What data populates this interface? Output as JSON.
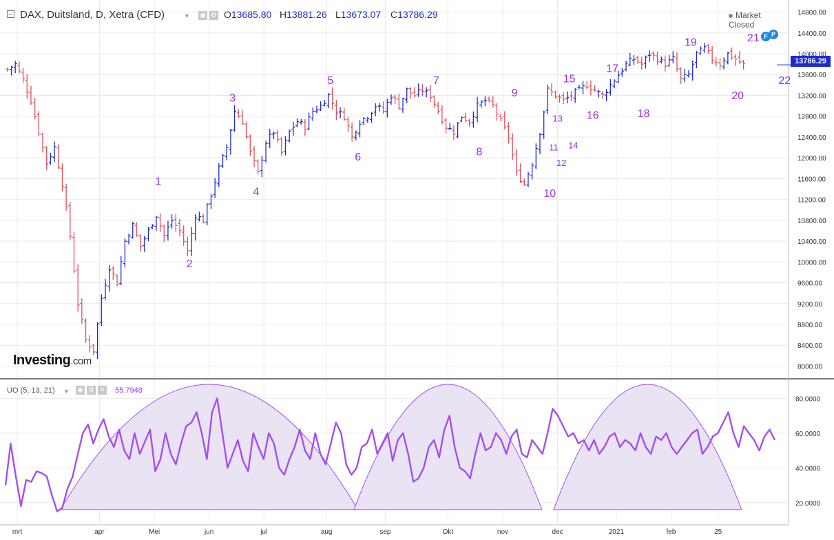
{
  "header": {
    "symbol": "DAX, Duitsland, D, Xetra (CFD)",
    "open_label": "O",
    "open_value": "13685.80",
    "high_label": "H",
    "high_value": "13881.26",
    "low_label": "L",
    "low_value": "13673.07",
    "close_label": "C",
    "close_value": "13786.29",
    "market_status": "Market Closed",
    "caret_icon": "caret-down-icon",
    "settings_icon": "gear-icon",
    "eye_icon": "eye-icon"
  },
  "logo": {
    "text": "Investing",
    "suffix": ".com"
  },
  "indicator": {
    "title": "UO (5, 13, 21)",
    "value": "55.7948",
    "icons": [
      "eye-icon",
      "gear-icon",
      "close-icon"
    ]
  },
  "price_tag": "13786.29",
  "badges": [
    "F",
    "P"
  ],
  "colors": {
    "up_bar": "#1c2bd0",
    "down_bar": "#e0505a",
    "oscillator": "#a64df0",
    "arc_fill": "#e9e3f4",
    "arc_stroke": "#a64df0",
    "wave_label": "#9b30e0",
    "grid": "#e9e9e9"
  },
  "chart_data": [
    {
      "type": "ohlc",
      "title": "DAX, Duitsland, D, Xetra (CFD)",
      "y_axis": {
        "min": 7900,
        "max": 14900,
        "ticks": [
          "14800.00",
          "14400.00",
          "14000.00",
          "13600.00",
          "13200.00",
          "12800.00",
          "12400.00",
          "12000.00",
          "11600.00",
          "11200.00",
          "10800.00",
          "10400.00",
          "10000.00",
          "9600.00",
          "9200.00",
          "8800.00",
          "8400.00",
          "8000.00"
        ]
      },
      "x_axis": {
        "ticks": [
          "mrt",
          "apr",
          "Mei",
          "jun",
          "jul",
          "aug",
          "sep",
          "Okt",
          "nov",
          "dec",
          "2021",
          "feb",
          "25"
        ]
      },
      "grid": true,
      "last_price": 13786.29,
      "close_path": [
        [
          0,
          13700
        ],
        [
          2,
          13800
        ],
        [
          4,
          13500
        ],
        [
          6,
          13100
        ],
        [
          8,
          12500
        ],
        [
          10,
          11900
        ],
        [
          12,
          12200
        ],
        [
          14,
          11500
        ],
        [
          16,
          10500
        ],
        [
          18,
          9200
        ],
        [
          20,
          8500
        ],
        [
          22,
          8300
        ],
        [
          24,
          9300
        ],
        [
          26,
          9900
        ],
        [
          28,
          9600
        ],
        [
          30,
          10400
        ],
        [
          32,
          10700
        ],
        [
          34,
          10300
        ],
        [
          36,
          10600
        ],
        [
          38,
          10900
        ],
        [
          40,
          10500
        ],
        [
          42,
          10800
        ],
        [
          44,
          10600
        ],
        [
          46,
          10200
        ],
        [
          48,
          10900
        ],
        [
          50,
          10800
        ],
        [
          52,
          11300
        ],
        [
          54,
          11800
        ],
        [
          56,
          12200
        ],
        [
          58,
          12900
        ],
        [
          60,
          12700
        ],
        [
          62,
          12100
        ],
        [
          64,
          11700
        ],
        [
          66,
          12300
        ],
        [
          68,
          12500
        ],
        [
          70,
          12100
        ],
        [
          72,
          12500
        ],
        [
          74,
          12700
        ],
        [
          76,
          12600
        ],
        [
          78,
          12900
        ],
        [
          80,
          13000
        ],
        [
          82,
          13200
        ],
        [
          84,
          12900
        ],
        [
          86,
          12800
        ],
        [
          88,
          12400
        ],
        [
          90,
          12700
        ],
        [
          92,
          12800
        ],
        [
          94,
          13000
        ],
        [
          96,
          12900
        ],
        [
          98,
          13200
        ],
        [
          100,
          13000
        ],
        [
          102,
          13300
        ],
        [
          104,
          13200
        ],
        [
          106,
          13300
        ],
        [
          108,
          13200
        ],
        [
          110,
          12900
        ],
        [
          112,
          12600
        ],
        [
          114,
          12500
        ],
        [
          116,
          12800
        ],
        [
          118,
          12700
        ],
        [
          120,
          13000
        ],
        [
          122,
          13100
        ],
        [
          124,
          13000
        ],
        [
          126,
          12700
        ],
        [
          128,
          12400
        ],
        [
          130,
          11700
        ],
        [
          132,
          11500
        ],
        [
          134,
          11900
        ],
        [
          136,
          12500
        ],
        [
          138,
          13300
        ],
        [
          140,
          13200
        ],
        [
          142,
          13100
        ],
        [
          144,
          13200
        ],
        [
          146,
          13300
        ],
        [
          148,
          13400
        ],
        [
          150,
          13300
        ],
        [
          152,
          13200
        ],
        [
          154,
          13400
        ],
        [
          156,
          13600
        ],
        [
          158,
          13800
        ],
        [
          160,
          13900
        ],
        [
          162,
          13800
        ],
        [
          164,
          14000
        ],
        [
          166,
          13900
        ],
        [
          168,
          13800
        ],
        [
          170,
          13900
        ],
        [
          172,
          13500
        ],
        [
          174,
          13600
        ],
        [
          176,
          14000
        ],
        [
          178,
          14100
        ],
        [
          180,
          13900
        ],
        [
          182,
          13800
        ],
        [
          184,
          14000
        ],
        [
          186,
          13900
        ],
        [
          188,
          13786
        ]
      ],
      "wave_labels": [
        {
          "label": "1",
          "x": 39,
          "y": 11480
        },
        {
          "label": "2",
          "x": 47,
          "y": 9900
        },
        {
          "label": "3",
          "x": 58,
          "y": 13080
        },
        {
          "label": "4",
          "x": 64,
          "y": 11280
        },
        {
          "label": "5",
          "x": 83,
          "y": 13420
        },
        {
          "label": "6",
          "x": 90,
          "y": 11950
        },
        {
          "label": "7",
          "x": 110,
          "y": 13420
        },
        {
          "label": "8",
          "x": 121,
          "y": 12050
        },
        {
          "label": "9",
          "x": 130,
          "y": 13180
        },
        {
          "label": "10",
          "x": 139,
          "y": 11250
        },
        {
          "label": "11",
          "x": 140,
          "y": 12140
        },
        {
          "label": "12",
          "x": 142,
          "y": 11840
        },
        {
          "label": "13",
          "x": 141,
          "y": 12700
        },
        {
          "label": "14",
          "x": 145,
          "y": 12180
        },
        {
          "label": "15",
          "x": 144,
          "y": 13450
        },
        {
          "label": "16",
          "x": 150,
          "y": 12750
        },
        {
          "label": "17",
          "x": 155,
          "y": 13650
        },
        {
          "label": "18",
          "x": 163,
          "y": 12780
        },
        {
          "label": "19",
          "x": 175,
          "y": 14150
        },
        {
          "label": "20",
          "x": 187,
          "y": 13130
        },
        {
          "label": "21",
          "x": 191,
          "y": 14240
        },
        {
          "label": "22",
          "x": 199,
          "y": 13420
        }
      ]
    },
    {
      "type": "line",
      "title": "UO (5, 13, 21)",
      "last_value": 55.7948,
      "y_axis": {
        "min": 10,
        "max": 90,
        "ticks": [
          "80.0000",
          "60.0000",
          "40.0000",
          "20.0000"
        ]
      },
      "series": [
        {
          "values": [
            30,
            54,
            35,
            18,
            33,
            32,
            38,
            37,
            35,
            24,
            15,
            17,
            28,
            35,
            48,
            60,
            65,
            54,
            62,
            68,
            58,
            52,
            62,
            50,
            45,
            60,
            48,
            55,
            62,
            38,
            45,
            60,
            48,
            42,
            54,
            64,
            66,
            72,
            60,
            45,
            72,
            80,
            60,
            40,
            48,
            56,
            44,
            38,
            60,
            52,
            45,
            60,
            54,
            40,
            36,
            45,
            52,
            62,
            50,
            45,
            60,
            48,
            42,
            54,
            66,
            60,
            42,
            36,
            40,
            52,
            54,
            62,
            48,
            54,
            60,
            44,
            56,
            60,
            48,
            32,
            34,
            40,
            52,
            56,
            46,
            62,
            70,
            52,
            40,
            38,
            34,
            48,
            60,
            50,
            52,
            60,
            56,
            48,
            58,
            62,
            48,
            46,
            56,
            52,
            48,
            60,
            74,
            70,
            64,
            58,
            60,
            54,
            56,
            50,
            56,
            48,
            52,
            58,
            60,
            52,
            56,
            54,
            50,
            60,
            52,
            48,
            58,
            56,
            60,
            52,
            48,
            52,
            56,
            60,
            62,
            48,
            52,
            58,
            60,
            66,
            72,
            60,
            52,
            64,
            60,
            56,
            50,
            58,
            62,
            56
          ]
        }
      ],
      "arcs": [
        {
          "start": 14,
          "peak": 52,
          "end": 90,
          "top": 88
        },
        {
          "start": 89,
          "peak": 113,
          "end": 137,
          "top": 88
        },
        {
          "start": 140,
          "peak": 164,
          "end": 188,
          "top": 88
        }
      ]
    }
  ]
}
